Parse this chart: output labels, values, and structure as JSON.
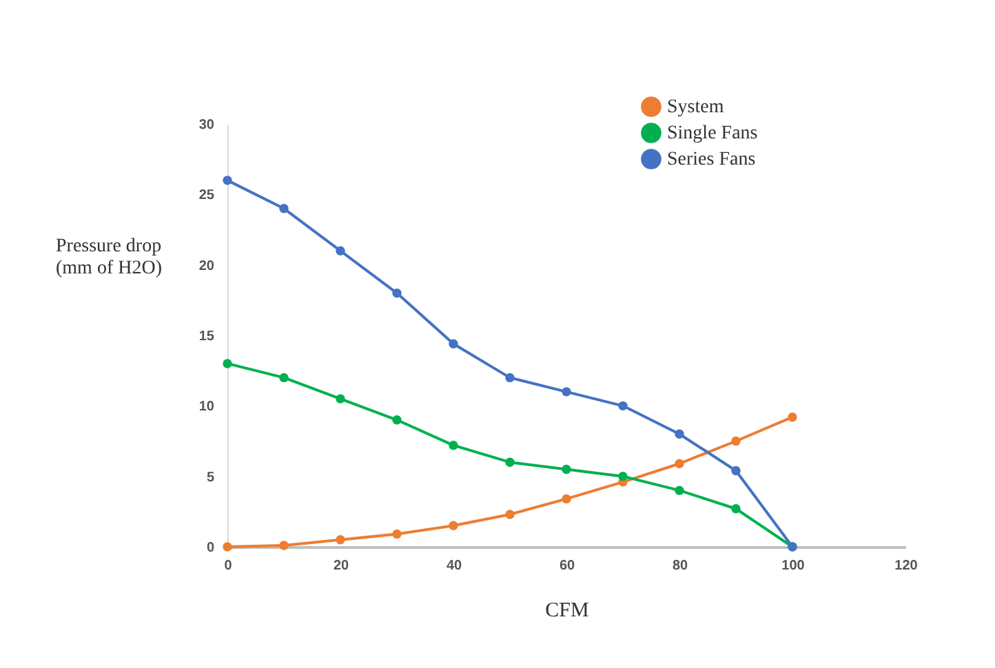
{
  "chart_data": {
    "type": "line",
    "xlabel": "CFM",
    "ylabel": "Pressure drop\n(mm of H2O)",
    "x": [
      0,
      10,
      20,
      30,
      40,
      50,
      60,
      70,
      80,
      90,
      100
    ],
    "xlim": [
      0,
      120
    ],
    "xticks": [
      0,
      20,
      40,
      60,
      80,
      100,
      120
    ],
    "ylim": [
      0,
      30
    ],
    "yticks": [
      0,
      5,
      10,
      15,
      20,
      25,
      30
    ],
    "grid": false,
    "legend": "top right",
    "marker": "circle",
    "line_style": "solid",
    "series": [
      {
        "name": "System",
        "color": "#ed7d31",
        "values": [
          0,
          0.1,
          0.5,
          0.9,
          1.5,
          2.3,
          3.4,
          4.6,
          5.9,
          7.5,
          9.2
        ]
      },
      {
        "name": "Single Fans",
        "color": "#00b050",
        "values": [
          13,
          12,
          10.5,
          9,
          7.2,
          6,
          5.5,
          5,
          4,
          2.7,
          0
        ]
      },
      {
        "name": "Series Fans",
        "color": "#4472c4",
        "values": [
          26,
          24,
          21,
          18,
          14.4,
          12,
          11,
          10,
          8,
          5.4,
          0
        ]
      }
    ]
  }
}
